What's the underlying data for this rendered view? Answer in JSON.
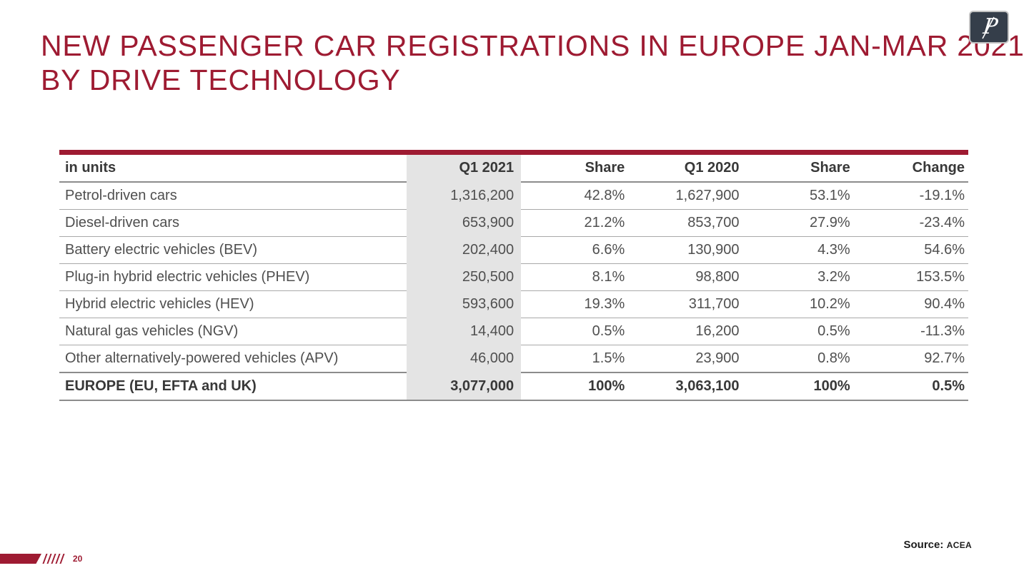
{
  "slide": {
    "title_line1": "NEW PASSENGER CAR REGISTRATIONS IN EUROPE JAN-MAR 2021",
    "title_line2": "BY DRIVE TECHNOLOGY",
    "logo_letter": "P",
    "footer": {
      "page_number": "20",
      "source_label": "Source:",
      "source_value": "ACEA"
    }
  },
  "table": {
    "headers": [
      "in units",
      "Q1 2021",
      "Share",
      "Q1 2020",
      "Share",
      "Change"
    ],
    "rows": [
      {
        "bold": false,
        "cells": [
          "Petrol-driven cars",
          "1,316,200",
          "42.8%",
          "1,627,900",
          "53.1%",
          "-19.1%"
        ]
      },
      {
        "bold": false,
        "cells": [
          "Diesel-driven cars",
          "653,900",
          "21.2%",
          "853,700",
          "27.9%",
          "-23.4%"
        ]
      },
      {
        "bold": false,
        "cells": [
          "Battery electric vehicles (BEV)",
          "202,400",
          "6.6%",
          "130,900",
          "4.3%",
          "54.6%"
        ]
      },
      {
        "bold": false,
        "cells": [
          "Plug-in hybrid electric vehicles (PHEV)",
          "250,500",
          "8.1%",
          "98,800",
          "3.2%",
          "153.5%"
        ]
      },
      {
        "bold": false,
        "cells": [
          "Hybrid electric vehicles (HEV)",
          "593,600",
          "19.3%",
          "311,700",
          "10.2%",
          "90.4%"
        ]
      },
      {
        "bold": false,
        "cells": [
          "Natural gas vehicles (NGV)",
          "14,400",
          "0.5%",
          "16,200",
          "0.5%",
          "-11.3%"
        ]
      },
      {
        "bold": false,
        "cells": [
          "Other alternatively-powered vehicles (APV)",
          "46,000",
          "1.5%",
          "23,900",
          "0.8%",
          "92.7%"
        ]
      },
      {
        "bold": true,
        "cells": [
          "EUROPE (EU, EFTA and UK)",
          "3,077,000",
          "100%",
          "3,063,100",
          "100%",
          "0.5%"
        ]
      }
    ]
  },
  "colors": {
    "accent_red": "#9e1b32",
    "shaded_column": "#e4e4e4",
    "logo_bg": "#353e4a",
    "row_line": "#a9a9a9",
    "strong_line": "#8c8c8c",
    "text_dark": "#383838",
    "text_normal": "#4f4f4f"
  }
}
